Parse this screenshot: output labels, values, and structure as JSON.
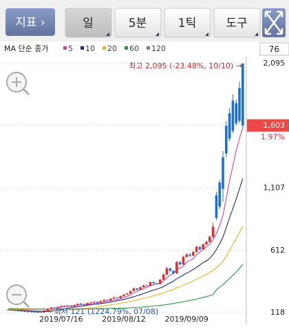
{
  "toolbar": {
    "indicator": "지표 ›",
    "buttons": [
      "일",
      "5분",
      "1틱",
      "도구"
    ]
  },
  "chart_data": {
    "type": "candlestick",
    "ma_label": "MA 단순 종가",
    "corner_value": 76,
    "up_color": "#e0302f",
    "down_color": "#1f6fd1",
    "x": [
      null,
      null,
      null,
      null,
      null,
      null,
      null,
      null,
      null,
      null,
      null,
      null,
      null,
      null,
      null,
      null,
      "2019/07/16",
      null,
      null,
      null,
      null,
      null,
      null,
      null,
      null,
      null,
      null,
      null,
      null,
      null,
      null,
      null,
      null,
      null,
      null,
      "2019/08/12",
      null,
      null,
      null,
      null,
      null,
      null,
      null,
      null,
      null,
      null,
      null,
      null,
      null,
      null,
      null,
      null,
      null,
      null,
      "2019/09/09",
      null,
      null,
      null,
      null,
      null,
      null,
      null,
      null,
      null,
      null,
      null,
      null,
      null,
      null,
      null,
      null,
      null
    ],
    "open": [
      142,
      140,
      138,
      135,
      133,
      130,
      128,
      127,
      125,
      124,
      122,
      125,
      135,
      150,
      160,
      158,
      165,
      172,
      170,
      175,
      168,
      180,
      190,
      185,
      178,
      195,
      200,
      205,
      198,
      210,
      220,
      215,
      230,
      240,
      235,
      250,
      262,
      270,
      290,
      310,
      300,
      320,
      335,
      330,
      360,
      350,
      345,
      380,
      420,
      470,
      450,
      430,
      520,
      500,
      560,
      580,
      570,
      600,
      640,
      620,
      660,
      680,
      720,
      1050,
      1150,
      1350,
      1600,
      1700,
      1800,
      1780,
      1900,
      2095
    ],
    "high": [
      145,
      143,
      141,
      138,
      136,
      133,
      131,
      129,
      127,
      126,
      127,
      138,
      153,
      163,
      165,
      168,
      176,
      176,
      178,
      180,
      178,
      184,
      195,
      192,
      198,
      205,
      210,
      208,
      214,
      224,
      224,
      233,
      245,
      243,
      255,
      266,
      276,
      295,
      318,
      315,
      326,
      342,
      340,
      365,
      366,
      356,
      386,
      430,
      480,
      475,
      455,
      530,
      525,
      570,
      590,
      588,
      608,
      650,
      645,
      668,
      690,
      730,
      830,
      1080,
      1170,
      1400,
      1640,
      1740,
      1850,
      1810,
      1950,
      2095
    ],
    "low": [
      136,
      135,
      132,
      130,
      128,
      125,
      124,
      123,
      122,
      122,
      121,
      123,
      133,
      147,
      155,
      154,
      162,
      166,
      168,
      165,
      164,
      176,
      182,
      174,
      175,
      190,
      196,
      194,
      195,
      206,
      212,
      210,
      226,
      230,
      232,
      246,
      258,
      266,
      286,
      295,
      296,
      316,
      326,
      325,
      345,
      340,
      340,
      375,
      415,
      440,
      420,
      425,
      495,
      495,
      555,
      562,
      566,
      595,
      610,
      615,
      655,
      675,
      710,
      850,
      940,
      1000,
      1350,
      1480,
      1540,
      1600,
      1620,
      1580
    ],
    "close": [
      140,
      138,
      135,
      133,
      130,
      128,
      127,
      125,
      124,
      122,
      125,
      135,
      150,
      160,
      158,
      165,
      172,
      170,
      175,
      168,
      180,
      190,
      185,
      178,
      195,
      200,
      205,
      198,
      210,
      220,
      215,
      230,
      240,
      235,
      250,
      262,
      270,
      290,
      310,
      300,
      320,
      335,
      330,
      360,
      350,
      345,
      380,
      420,
      470,
      450,
      430,
      520,
      500,
      560,
      580,
      570,
      600,
      640,
      620,
      660,
      680,
      720,
      800,
      870,
      960,
      1100,
      1380,
      1500,
      1560,
      1620,
      1640,
      1603
    ],
    "ma": [
      {
        "name": "5",
        "color": "#d63fa0",
        "values": [
          142,
          141,
          139,
          137,
          135,
          133,
          131,
          129,
          127,
          125,
          124,
          127,
          131,
          137,
          146,
          154,
          161,
          165,
          168,
          169,
          170,
          177,
          180,
          181,
          184,
          188,
          193,
          195,
          199,
          204,
          210,
          212,
          219,
          224,
          230,
          240,
          248,
          259,
          274,
          288,
          298,
          311,
          319,
          333,
          339,
          348,
          353,
          371,
          393,
          417,
          431,
          458,
          474,
          486,
          518,
          534,
          546,
          578,
          598,
          618,
          640,
          664,
          696,
          746,
          808,
          890,
          1024,
          1166,
          1280,
          1404,
          1500,
          1583
        ]
      },
      {
        "name": "10",
        "color": "#1a2a80",
        "values": [
          143,
          142,
          141,
          140,
          138,
          136,
          134,
          132,
          130,
          128,
          127,
          127,
          128,
          130,
          133,
          137,
          142,
          147,
          153,
          158,
          162,
          165,
          169,
          173,
          177,
          180,
          184,
          187,
          190,
          194,
          198,
          202,
          208,
          213,
          218,
          224,
          230,
          237,
          245,
          253,
          261,
          270,
          279,
          289,
          297,
          306,
          314,
          325,
          340,
          355,
          368,
          387,
          401,
          416,
          432,
          445,
          461,
          479,
          496,
          516,
          529,
          550,
          579,
          618,
          664,
          716,
          793,
          871,
          944,
          1020,
          1100,
          1183
        ]
      },
      {
        "name": "20",
        "color": "#efb020",
        "values": [
          145,
          145,
          144,
          144,
          143,
          142,
          141,
          140,
          139,
          138,
          137,
          136,
          136,
          135,
          135,
          135,
          136,
          137,
          138,
          140,
          142,
          145,
          148,
          151,
          154,
          157,
          160,
          164,
          168,
          172,
          176,
          180,
          184,
          188,
          193,
          198,
          203,
          208,
          214,
          220,
          226,
          232,
          238,
          245,
          252,
          260,
          267,
          275,
          285,
          295,
          304,
          315,
          325,
          336,
          347,
          358,
          370,
          383,
          396,
          410,
          423,
          438,
          454,
          474,
          497,
          526,
          566,
          611,
          657,
          705,
          755,
          800
        ]
      },
      {
        "name": "60",
        "color": "#2a9a40",
        "values": [
          150,
          150,
          150,
          150,
          149,
          149,
          149,
          149,
          148,
          148,
          148,
          148,
          147,
          147,
          147,
          147,
          147,
          147,
          147,
          147,
          147,
          147,
          148,
          148,
          148,
          149,
          149,
          150,
          150,
          151,
          151,
          152,
          153,
          153,
          154,
          155,
          156,
          157,
          159,
          160,
          162,
          164,
          166,
          168,
          171,
          173,
          176,
          179,
          183,
          187,
          191,
          196,
          200,
          205,
          210,
          215,
          221,
          227,
          233,
          239,
          246,
          253,
          262,
          300,
          320,
          340,
          365,
          390,
          415,
          440,
          470,
          500
        ]
      },
      {
        "name": "120",
        "color": "#808080"
      }
    ],
    "ylim": [
      80,
      2160
    ],
    "yticks": [
      {
        "value": 2095,
        "label": "2,095"
      },
      {
        "value": 1603,
        "label": "1,603"
      },
      {
        "value": 1107,
        "label": "1,107"
      },
      612,
      118
    ],
    "last_price": {
      "value": 1603,
      "label": "1,603"
    },
    "last_change": "1.97%",
    "high_note": "최고 2,095 (-23.48%, 10/10) →",
    "low_note": "←- 최저 121 (1224.79%, 07/08)"
  }
}
